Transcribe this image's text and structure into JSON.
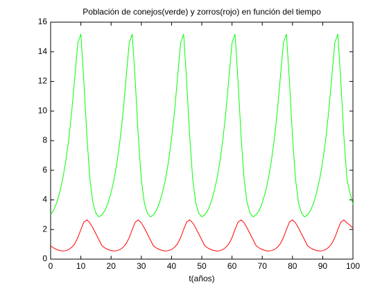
{
  "chart_data": {
    "type": "line",
    "title": "Población de conejos(verde) y zorros(rojo) en función del tiempo",
    "x_label": "t(años)",
    "x": [
      0,
      1,
      2,
      3,
      4,
      5,
      6,
      7,
      8,
      9,
      10,
      11,
      12,
      13,
      14,
      15,
      16,
      17,
      18,
      19,
      20,
      21,
      22,
      23,
      24,
      25,
      26,
      27,
      28,
      29,
      30,
      31,
      32,
      33,
      34,
      35,
      36,
      37,
      38,
      39,
      40,
      41,
      42,
      43,
      44,
      45,
      46,
      47,
      48,
      49,
      50,
      51,
      52,
      53,
      54,
      55,
      56,
      57,
      58,
      59,
      60,
      61,
      62,
      63,
      64,
      65,
      66,
      67,
      68,
      69,
      70,
      71,
      72,
      73,
      74,
      75,
      76,
      77,
      78,
      79,
      80,
      81,
      82,
      83,
      84,
      85,
      86,
      87,
      88,
      89,
      90,
      91,
      92,
      93,
      94,
      95,
      96,
      97,
      98,
      99,
      100
    ],
    "series": [
      {
        "color": "#00ff00",
        "values": [
          3.0,
          3.3,
          3.8,
          4.5,
          5.4,
          6.6,
          8.1,
          10.0,
          12.3,
          14.6,
          15.2,
          12.0,
          8.3,
          5.4,
          3.8,
          3.1,
          2.85,
          3.0,
          3.3,
          3.8,
          4.5,
          5.4,
          6.6,
          8.1,
          10.0,
          12.3,
          14.6,
          15.2,
          12.0,
          8.3,
          5.4,
          3.8,
          3.1,
          2.85,
          3.0,
          3.3,
          3.8,
          4.5,
          5.4,
          6.6,
          8.1,
          10.0,
          12.3,
          14.6,
          15.2,
          12.0,
          8.3,
          5.4,
          3.8,
          3.1,
          2.85,
          3.0,
          3.3,
          3.8,
          4.5,
          5.4,
          6.6,
          8.1,
          10.0,
          12.3,
          14.6,
          15.2,
          12.0,
          8.3,
          5.4,
          3.8,
          3.1,
          2.85,
          3.0,
          3.3,
          3.8,
          4.5,
          5.4,
          6.6,
          8.1,
          10.0,
          12.3,
          14.6,
          15.2,
          12.0,
          8.3,
          5.4,
          3.8,
          3.1,
          2.85,
          3.0,
          3.3,
          3.8,
          4.5,
          5.4,
          6.6,
          8.1,
          10.0,
          12.3,
          14.6,
          15.2,
          12.0,
          8.3,
          5.4,
          4.5,
          3.7
        ]
      },
      {
        "color": "#ff0000",
        "values": [
          0.9,
          0.75,
          0.65,
          0.58,
          0.55,
          0.57,
          0.65,
          0.8,
          1.05,
          1.45,
          2.0,
          2.5,
          2.65,
          2.45,
          2.1,
          1.7,
          1.3,
          0.9,
          0.75,
          0.65,
          0.58,
          0.55,
          0.57,
          0.65,
          0.8,
          1.05,
          1.45,
          2.0,
          2.5,
          2.65,
          2.45,
          2.1,
          1.7,
          1.3,
          0.9,
          0.75,
          0.65,
          0.58,
          0.55,
          0.57,
          0.65,
          0.8,
          1.05,
          1.45,
          2.0,
          2.5,
          2.65,
          2.45,
          2.1,
          1.7,
          1.3,
          0.9,
          0.75,
          0.65,
          0.58,
          0.55,
          0.57,
          0.65,
          0.8,
          1.05,
          1.45,
          2.0,
          2.5,
          2.65,
          2.45,
          2.1,
          1.7,
          1.3,
          0.9,
          0.75,
          0.65,
          0.58,
          0.55,
          0.57,
          0.65,
          0.8,
          1.05,
          1.45,
          2.0,
          2.5,
          2.65,
          2.45,
          2.1,
          1.7,
          1.3,
          0.9,
          0.75,
          0.65,
          0.58,
          0.55,
          0.57,
          0.65,
          0.8,
          1.05,
          1.45,
          2.0,
          2.5,
          2.65,
          2.45,
          2.3,
          2.1
        ]
      }
    ],
    "xlim": [
      0,
      100
    ],
    "xticks": [
      0,
      10,
      20,
      30,
      40,
      50,
      60,
      70,
      80,
      90,
      100
    ],
    "ylim": [
      0,
      16
    ],
    "yticks": [
      0,
      2,
      4,
      6,
      8,
      10,
      12,
      14,
      16
    ]
  }
}
